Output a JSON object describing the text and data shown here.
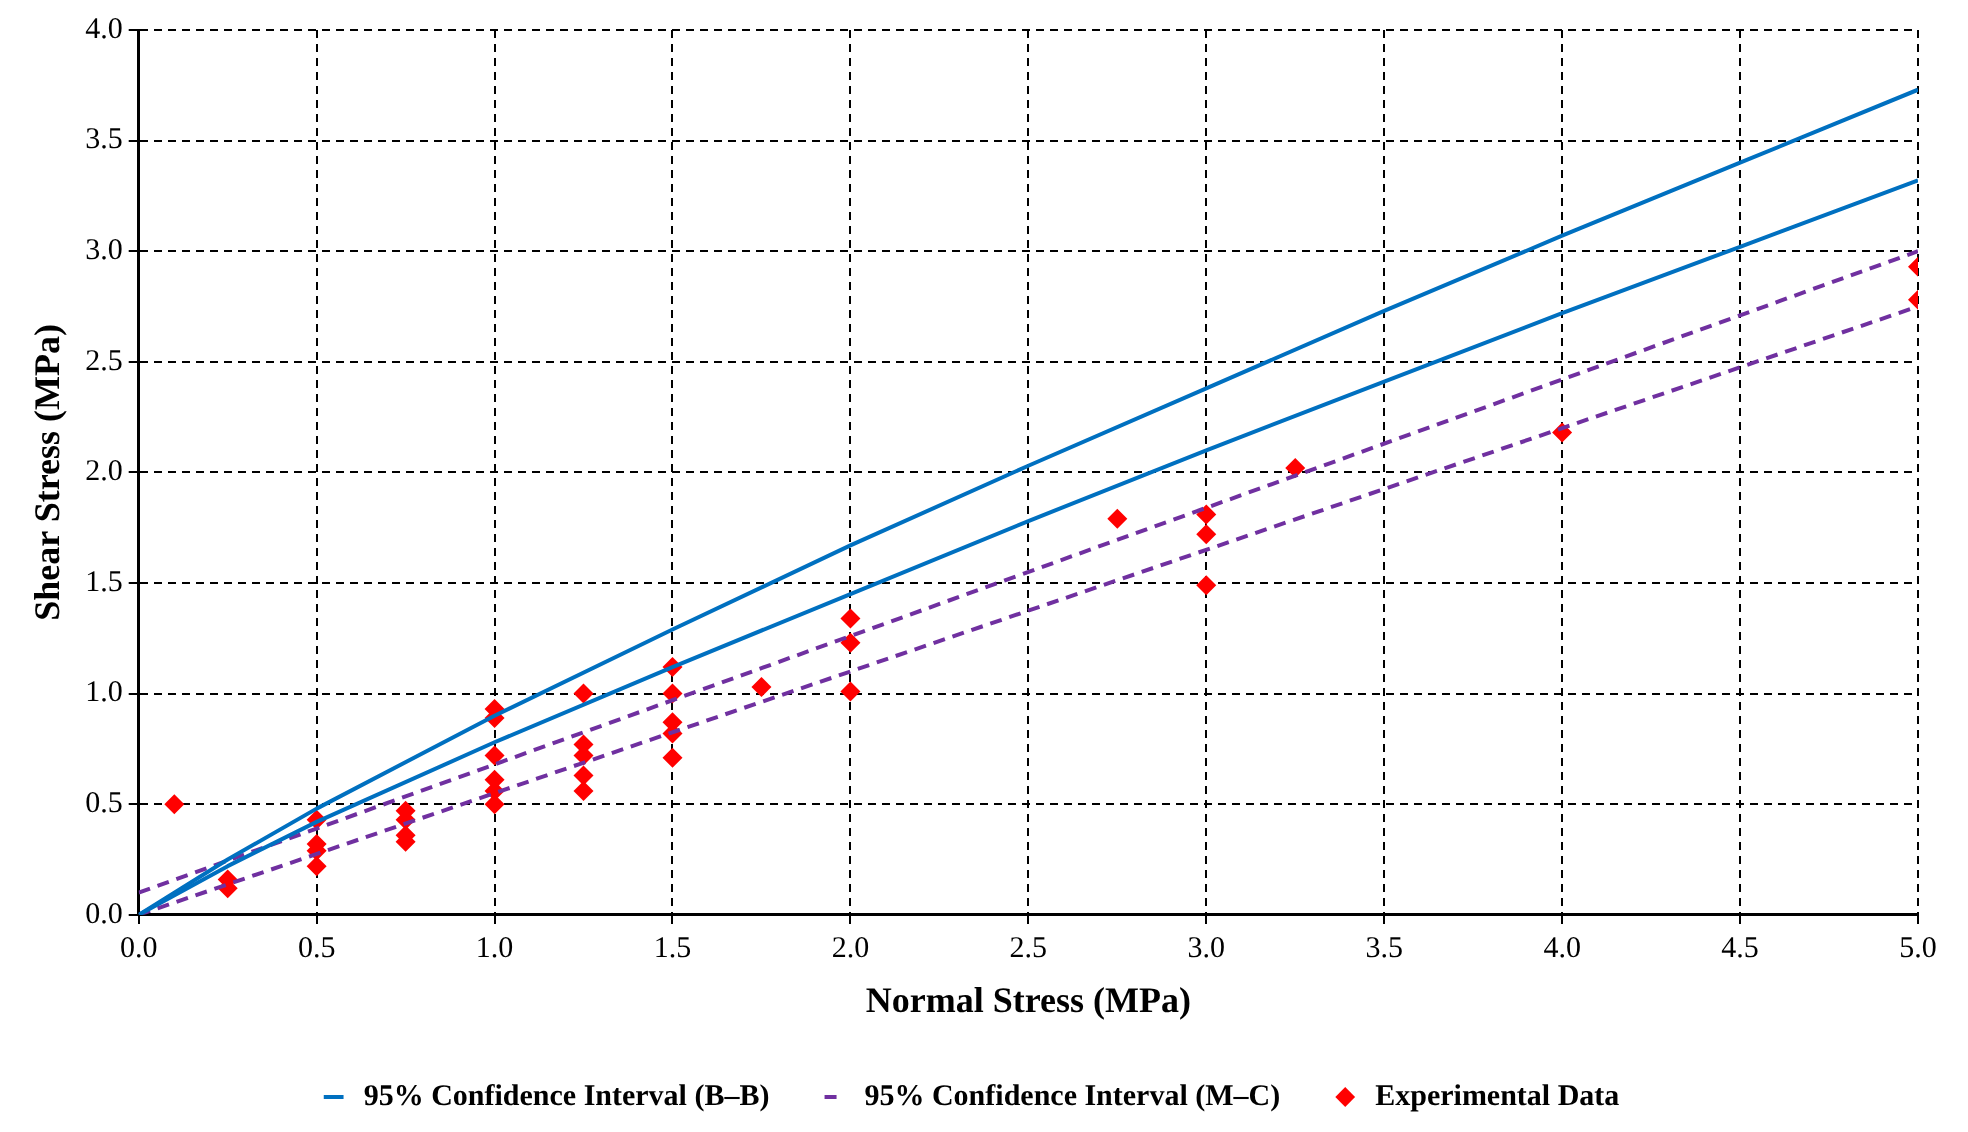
{
  "chart_data": {
    "type": "line",
    "xlabel": "Normal Stress (MPa)",
    "ylabel": "Shear Stress (MPa)",
    "xlim": [
      0,
      5
    ],
    "xticks": [
      {
        "value": 0,
        "label": "0.0"
      },
      {
        "value": 0.5,
        "label": "0.5"
      },
      {
        "value": 1,
        "label": "1.0"
      },
      {
        "value": 1.5,
        "label": "1.5"
      },
      {
        "value": 2,
        "label": "2.0"
      },
      {
        "value": 2.5,
        "label": "2.5"
      },
      {
        "value": 3,
        "label": "3.0"
      },
      {
        "value": 3.5,
        "label": "3.5"
      },
      {
        "value": 4,
        "label": "4.0"
      },
      {
        "value": 4.5,
        "label": "4.5"
      },
      {
        "value": 5,
        "label": "5.0"
      }
    ],
    "ylim": [
      0,
      4
    ],
    "yticks": [
      {
        "value": 0,
        "label": "0.0"
      },
      {
        "value": 0.5,
        "label": "0.5"
      },
      {
        "value": 1,
        "label": "1.0"
      },
      {
        "value": 1.5,
        "label": "1.5"
      },
      {
        "value": 2,
        "label": "2.0"
      },
      {
        "value": 2.5,
        "label": "2.5"
      },
      {
        "value": 3,
        "label": "3.0"
      },
      {
        "value": 3.5,
        "label": "3.5"
      },
      {
        "value": 4,
        "label": "4.0"
      }
    ],
    "grid": true,
    "legend": "bottom",
    "series": [
      {
        "name": "95% Confidence Interval (B–B)",
        "type": "line",
        "color": "#0070c0",
        "line_style": "solid",
        "marker": "none",
        "x": [
          0,
          0.25,
          0.5,
          1,
          1.5,
          2,
          2.5,
          3,
          3.5,
          4,
          4.5,
          5
        ],
        "values": [
          0,
          0.25,
          0.48,
          0.9,
          1.29,
          1.67,
          2.03,
          2.38,
          2.73,
          3.07,
          3.4,
          3.73
        ]
      },
      {
        "type": "line",
        "color": "#0070c0",
        "line_style": "solid",
        "marker": "none",
        "x": [
          0,
          0.25,
          0.5,
          1,
          1.5,
          2,
          2.5,
          3,
          3.5,
          4,
          4.5,
          5
        ],
        "values": [
          0,
          0.22,
          0.42,
          0.78,
          1.12,
          1.45,
          1.78,
          2.1,
          2.41,
          2.72,
          3.02,
          3.32
        ]
      },
      {
        "name": "95% Confidence Interval (M–C)",
        "type": "line",
        "color": "#7030a0",
        "line_style": "dashed",
        "marker": "none",
        "x": [
          0,
          5
        ],
        "values": [
          0.1,
          3.0
        ]
      },
      {
        "type": "line",
        "color": "#7030a0",
        "line_style": "dashed",
        "marker": "none",
        "x": [
          0,
          5
        ],
        "values": [
          0,
          2.75
        ]
      },
      {
        "name": "Experimental Data",
        "type": "scatter",
        "color": "#ff0000",
        "marker": "diamond",
        "x": [
          0.1,
          0.25,
          0.25,
          0.5,
          0.5,
          0.5,
          0.5,
          0.75,
          0.75,
          0.75,
          0.75,
          1,
          1,
          1,
          1,
          1,
          1,
          1.25,
          1.25,
          1.25,
          1.25,
          1.25,
          1.5,
          1.5,
          1.5,
          1.5,
          1.5,
          1.75,
          2,
          2,
          2,
          2.75,
          3,
          3,
          3,
          3.25,
          4,
          5,
          5
        ],
        "values": [
          0.5,
          0.16,
          0.12,
          0.43,
          0.32,
          0.29,
          0.22,
          0.47,
          0.43,
          0.36,
          0.33,
          0.93,
          0.89,
          0.72,
          0.61,
          0.56,
          0.5,
          1.0,
          0.77,
          0.72,
          0.63,
          0.56,
          1.12,
          1.0,
          0.87,
          0.82,
          0.71,
          1.03,
          1.34,
          1.23,
          1.01,
          1.79,
          1.81,
          1.72,
          1.49,
          2.02,
          2.18,
          2.93,
          2.78
        ]
      }
    ]
  }
}
